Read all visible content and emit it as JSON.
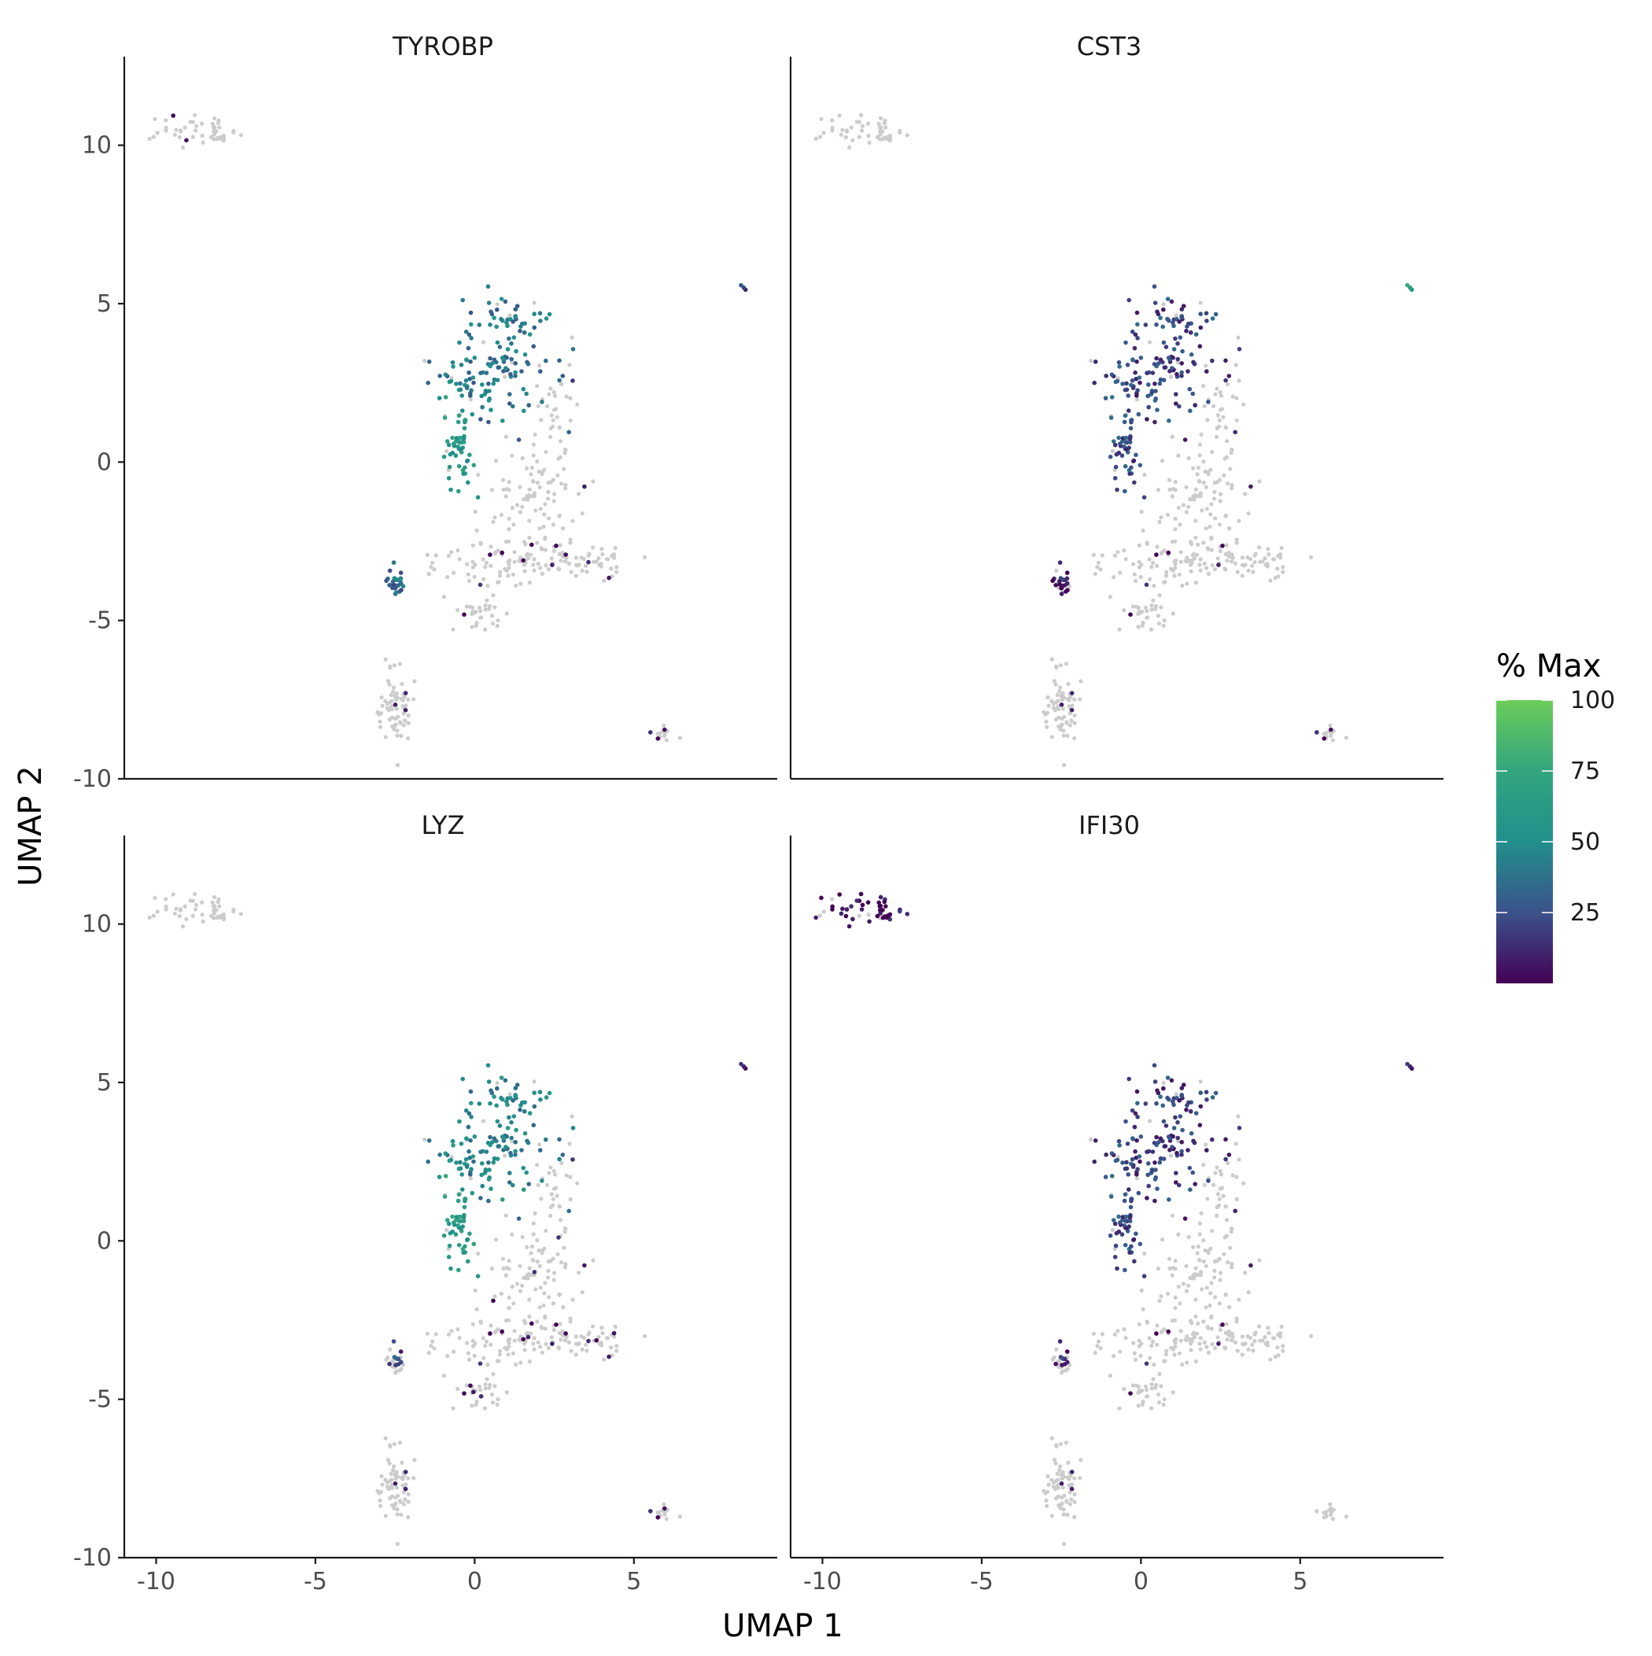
{
  "chart_data": {
    "type": "scatter",
    "xlabel": "UMAP 1",
    "ylabel": "UMAP 2",
    "xlim": [
      -11,
      9.5
    ],
    "ylim": [
      -10,
      12.3
    ],
    "x_ticks": [
      -10,
      -5,
      0,
      5
    ],
    "x_tick_labels": [
      "-10",
      "-5",
      "0",
      "5"
    ],
    "y_ticks": [
      -10,
      -5,
      0,
      5,
      10
    ],
    "y_tick_labels": [
      "-10",
      "-5",
      "0",
      "5",
      "10"
    ],
    "grid": false,
    "legend": {
      "title": "% Max",
      "placement": "right",
      "ticks": [
        25,
        50,
        75,
        100
      ],
      "tick_labels": [
        "25",
        "50",
        "75",
        "100"
      ],
      "range": [
        0,
        100
      ],
      "colors": [
        "#440154",
        "#3b528b",
        "#21908c",
        "#5dc863"
      ]
    },
    "background_color": "#cccccc",
    "panels": [
      {
        "title": "TYROBP",
        "levels": {
          "myeloid_upper": 42,
          "myeloid_left": 60,
          "small_cluster": 35,
          "top_left_cluster": 0,
          "right_point": 20,
          "bottom_right_cluster": 5
        },
        "expressing_fraction": {
          "myeloid": 0.95,
          "small_cluster": 0.85,
          "top_left_cluster": 0.06,
          "core": 0.04,
          "bottom_right_cluster": 0.25
        }
      },
      {
        "title": "CST3",
        "levels": {
          "myeloid_upper": 22,
          "myeloid_left": 24,
          "small_cluster": 8,
          "top_left_cluster": 0,
          "right_point": 70,
          "bottom_right_cluster": 5
        },
        "expressing_fraction": {
          "myeloid": 0.95,
          "small_cluster": 0.6,
          "top_left_cluster": 0.02,
          "core": 0.03,
          "bottom_right_cluster": 0.1
        }
      },
      {
        "title": "LYZ",
        "levels": {
          "myeloid_upper": 48,
          "myeloid_left": 62,
          "small_cluster": 20,
          "top_left_cluster": 0,
          "right_point": 10,
          "bottom_right_cluster": 5
        },
        "expressing_fraction": {
          "myeloid": 0.95,
          "small_cluster": 0.2,
          "top_left_cluster": 0.03,
          "core": 0.08,
          "bottom_right_cluster": 0.15
        }
      },
      {
        "title": "IFI30",
        "levels": {
          "myeloid_upper": 20,
          "myeloid_left": 22,
          "small_cluster": 8,
          "top_left_cluster": 3,
          "right_point": 10,
          "bottom_right_cluster": 5
        },
        "expressing_fraction": {
          "myeloid": 0.95,
          "small_cluster": 0.2,
          "top_left_cluster": 0.92,
          "core": 0.03,
          "bottom_right_cluster": 0.0
        }
      }
    ],
    "clusters": [
      {
        "name": "top_left_cluster",
        "center": [
          -9.2,
          10.5
        ],
        "spread": [
          0.7,
          0.28
        ],
        "n": 30
      },
      {
        "name": "top_left_cluster",
        "center": [
          -7.9,
          10.35
        ],
        "spread": [
          0.35,
          0.22
        ],
        "n": 20
      },
      {
        "name": "myeloid_upper",
        "center": [
          1.1,
          4.5
        ],
        "spread": [
          0.6,
          0.45
        ],
        "n": 45
      },
      {
        "name": "myeloid_upper",
        "center": [
          0.6,
          2.7
        ],
        "spread": [
          0.9,
          0.7
        ],
        "n": 110
      },
      {
        "name": "myeloid_left",
        "center": [
          -0.5,
          0.6
        ],
        "spread": [
          0.28,
          0.75
        ],
        "n": 55
      },
      {
        "name": "core",
        "center": [
          2.5,
          1.2
        ],
        "spread": [
          0.35,
          1.2
        ],
        "n": 45
      },
      {
        "name": "core",
        "center": [
          1.8,
          -1.2
        ],
        "spread": [
          0.9,
          0.75
        ],
        "n": 70
      },
      {
        "name": "core",
        "center": [
          1.5,
          -3.0
        ],
        "spread": [
          1.2,
          0.45
        ],
        "n": 110
      },
      {
        "name": "core",
        "center": [
          3.6,
          -3.2
        ],
        "spread": [
          0.5,
          0.25
        ],
        "n": 30
      },
      {
        "name": "core",
        "center": [
          0.2,
          -4.8
        ],
        "spread": [
          0.4,
          0.45
        ],
        "n": 35
      },
      {
        "name": "small_cluster",
        "center": [
          -2.5,
          -3.8
        ],
        "spread": [
          0.17,
          0.2
        ],
        "n": 28
      },
      {
        "name": "bottom_left_cluster",
        "center": [
          -2.4,
          -7.7
        ],
        "spread": [
          0.3,
          0.6
        ],
        "n": 70
      },
      {
        "name": "bottom_right_cluster",
        "center": [
          6.0,
          -8.6
        ],
        "spread": [
          0.25,
          0.18
        ],
        "n": 14
      },
      {
        "name": "right_point",
        "center": [
          8.5,
          5.5
        ],
        "spread": [
          0.04,
          0.04
        ],
        "n": 3
      }
    ]
  }
}
